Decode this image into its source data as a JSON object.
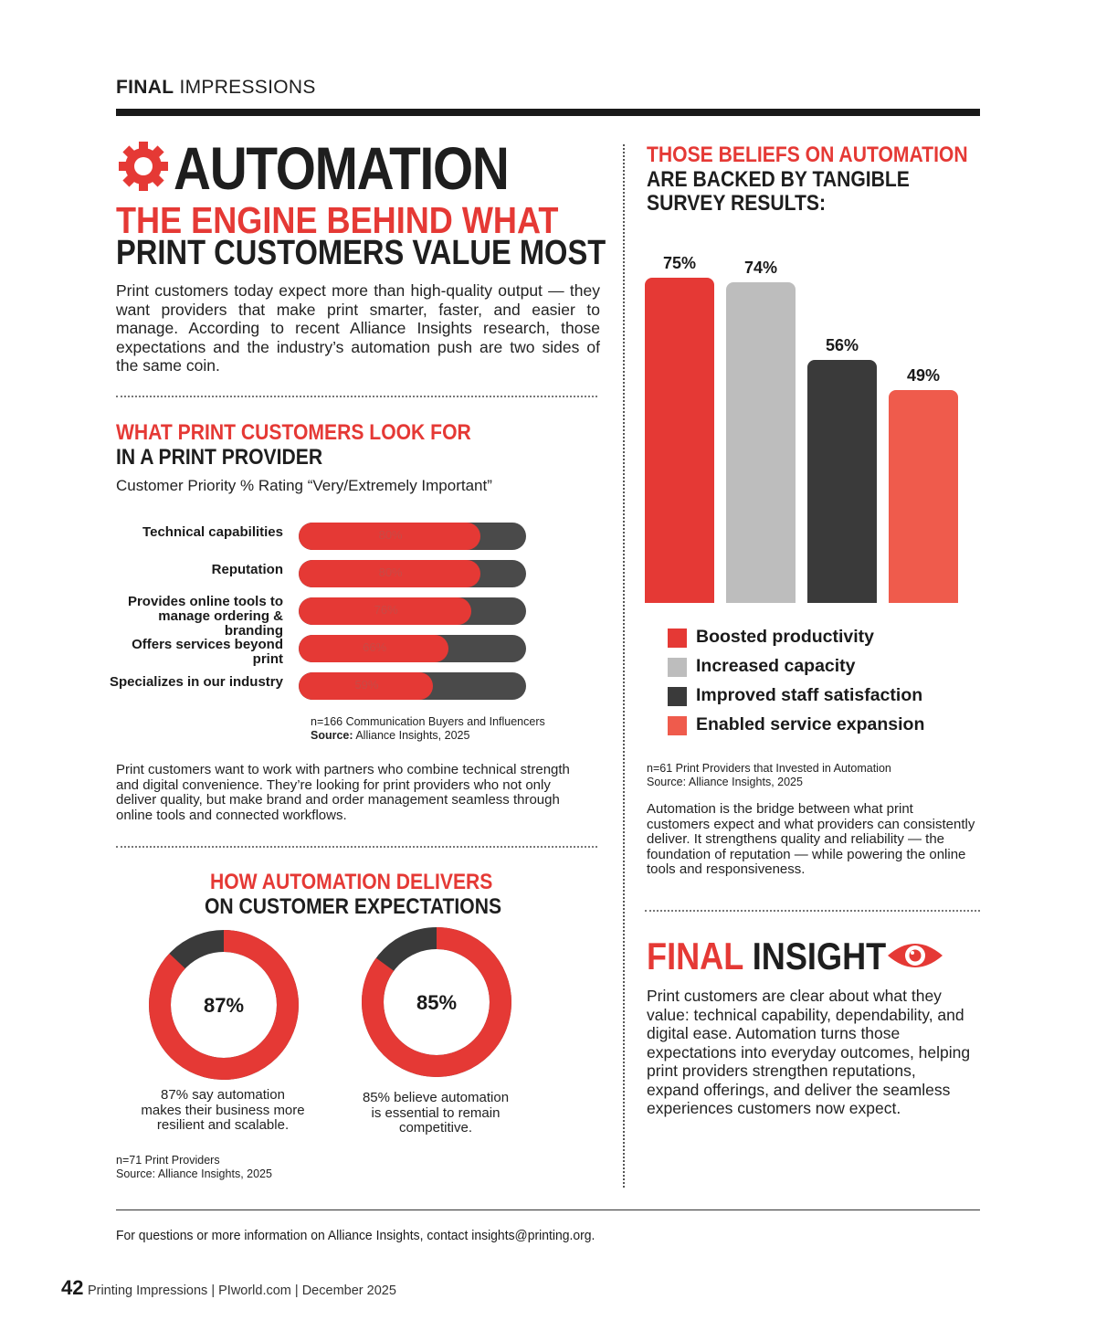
{
  "header": {
    "section_bold": "FINAL",
    "section_rest": "IMPRESSIONS"
  },
  "hero": {
    "title": "AUTOMATION",
    "subtitle_line1": "THE ENGINE BEHIND WHAT",
    "subtitle_line2": "PRINT CUSTOMERS VALUE MOST",
    "intro": "Print customers today expect more than high-quality output — they want providers that make print smarter, faster, and easier to manage. According to recent Alliance Insights research, those expectations and the industry’s automation push are two sides of the same coin."
  },
  "customer_section": {
    "heading_red": "WHAT PRINT CUSTOMERS LOOK FOR",
    "heading_dark": "IN A PRINT PROVIDER",
    "subheading": "Customer Priority % Rating “Very/Extremely Important”",
    "note_line1": "n=166 Communication Buyers and Influencers",
    "note_source_label": "Source:",
    "note_source": "Alliance Insights, 2025",
    "body": "Print customers want to work with partners who combine technical strength and digital convenience. They’re looking for print providers who not only deliver quality, but make brand and order management seamless through online tools and connected workflows."
  },
  "chart_data": [
    {
      "type": "bar",
      "orientation": "horizontal",
      "title": "Customer Priority % Rating “Very/Extremely Important”",
      "categories": [
        "Technical capabilities",
        "Reputation",
        "Provides online tools to manage ordering & branding",
        "Offers services beyond print",
        "Specializes in our industry"
      ],
      "value_labels": [
        "80%",
        "80%",
        "76%",
        "66%",
        "59%"
      ],
      "values": [
        80,
        80,
        76,
        66,
        59
      ],
      "xlim": [
        0,
        100
      ],
      "colors": {
        "fill": "#e53935",
        "track": "#4a4a4a"
      }
    },
    {
      "type": "bar",
      "title": "THOSE BELIEFS ON AUTOMATION ARE BACKED BY TANGIBLE SURVEY RESULTS:",
      "categories": [
        "Boosted productivity",
        "Increased capacity",
        "Improved staff satisfaction",
        "Enabled service expansion"
      ],
      "value_labels": [
        "75%",
        "74%",
        "56%",
        "49%"
      ],
      "values": [
        75,
        74,
        56,
        49
      ],
      "ylim": [
        0,
        75
      ],
      "colors": [
        "#e53935",
        "#bdbdbd",
        "#3a3a3a",
        "#ef5b4c"
      ],
      "legend": "bottom"
    },
    {
      "type": "pie",
      "donut": true,
      "charts": [
        {
          "center_label": "87%",
          "value": 87,
          "caption": "87% say automation makes their business more resilient and scalable."
        },
        {
          "center_label": "85%",
          "value": 85,
          "caption": "85% believe automation is essential to remain competitive."
        }
      ],
      "colors": {
        "value": "#e53935",
        "rest": "#3a3a3a"
      }
    }
  ],
  "delivers_section": {
    "heading_red": "HOW AUTOMATION DELIVERS",
    "heading_dark": "ON CUSTOMER EXPECTATIONS",
    "caption1_line1": "87% say automation",
    "caption1_line2": "makes their business more",
    "caption1_line3": "resilient and scalable.",
    "caption2_line1": "85% believe automation",
    "caption2_line2": "is essential to remain",
    "caption2_line3": "competitive.",
    "note_line1": "n=71 Print Providers",
    "note_line2": "Source: Alliance Insights, 2025"
  },
  "survey_section": {
    "heading_red": "THOSE BELIEFS ON AUTOMATION",
    "heading_dark_line1": "ARE BACKED BY TANGIBLE",
    "heading_dark_line2": "SURVEY RESULTS:",
    "note_line1": "n=61 Print Providers that Invested in Automation",
    "note_line2": "Source: Alliance Insights, 2025",
    "body": "Automation is the bridge between what print customers expect and what providers can consistently deliver. It strengthens quality and reliability — the foundation of reputation — while powering the online tools and responsiveness."
  },
  "final_insight": {
    "title_red": "FINAL",
    "title_dark": "INSIGHT",
    "body": "Print customers are clear about what they value: technical capability, dependability, and digital ease. Automation turns those expectations into everyday outcomes, helping print providers strengthen reputations, expand offerings, and deliver the seamless experiences customers now expect."
  },
  "footer": {
    "contact": "For questions or more information on Alliance Insights, contact insights@printing.org.",
    "page_number": "42",
    "publication": "Printing Impressions | PIworld.com | December 2025"
  },
  "icons": {
    "hero": "gear-icon",
    "insight": "eye-icon"
  },
  "colors": {
    "accent": "#e53935",
    "dark": "#1e1e1e"
  }
}
